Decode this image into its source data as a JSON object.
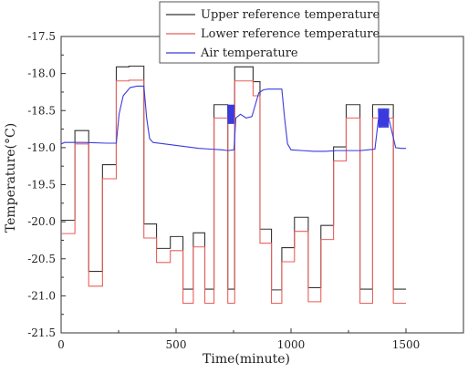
{
  "chart_data": {
    "type": "line",
    "xlabel": "Time(minute)",
    "ylabel": "Temperature(°C)",
    "xlim": [
      0,
      1750
    ],
    "ylim": [
      -21.5,
      -17.5
    ],
    "x_ticks": [
      "0",
      "500",
      "1000",
      "1500"
    ],
    "x_tick_values": [
      0,
      500,
      1000,
      1500
    ],
    "y_ticks": [
      "-17.5",
      "-18.0",
      "-18.5",
      "-19.0",
      "-19.5",
      "-20.0",
      "-20.5",
      "-21.0",
      "-21.5"
    ],
    "y_tick_values": [
      -17.5,
      -18.0,
      -18.5,
      -19.0,
      -19.5,
      -20.0,
      -20.5,
      -21.0,
      -21.5
    ],
    "grid": false,
    "legend_position": "top-center",
    "series": [
      {
        "name": "Upper reference temperature",
        "color": "#333333",
        "x": [
          0,
          60,
          60,
          120,
          120,
          180,
          180,
          240,
          240,
          295,
          295,
          360,
          360,
          415,
          415,
          475,
          475,
          530,
          530,
          575,
          575,
          625,
          625,
          665,
          665,
          725,
          725,
          755,
          755,
          835,
          835,
          865,
          865,
          915,
          915,
          960,
          960,
          1015,
          1015,
          1075,
          1075,
          1130,
          1130,
          1185,
          1185,
          1240,
          1240,
          1300,
          1300,
          1355,
          1355,
          1445,
          1445,
          1500
        ],
        "y": [
          -19.98,
          -19.98,
          -18.77,
          -18.77,
          -20.67,
          -20.67,
          -19.23,
          -19.23,
          -17.91,
          -17.91,
          -17.9,
          -17.9,
          -20.03,
          -20.03,
          -20.36,
          -20.36,
          -20.2,
          -20.2,
          -20.91,
          -20.91,
          -20.15,
          -20.15,
          -20.91,
          -20.91,
          -18.42,
          -18.42,
          -20.91,
          -20.91,
          -17.91,
          -17.91,
          -18.11,
          -18.11,
          -20.1,
          -20.1,
          -20.92,
          -20.92,
          -20.35,
          -20.35,
          -19.94,
          -19.94,
          -20.89,
          -20.89,
          -20.05,
          -20.05,
          -18.99,
          -18.99,
          -18.42,
          -18.42,
          -20.91,
          -20.91,
          -18.42,
          -18.42,
          -20.91,
          -20.91
        ]
      },
      {
        "name": "Lower reference temperature",
        "color": "#e8605a",
        "x": [
          0,
          60,
          60,
          120,
          120,
          180,
          180,
          240,
          240,
          295,
          295,
          360,
          360,
          415,
          415,
          475,
          475,
          530,
          530,
          575,
          575,
          625,
          625,
          665,
          665,
          725,
          725,
          755,
          755,
          835,
          835,
          865,
          865,
          915,
          915,
          960,
          960,
          1015,
          1015,
          1075,
          1075,
          1130,
          1130,
          1185,
          1185,
          1240,
          1240,
          1300,
          1300,
          1355,
          1355,
          1445,
          1445,
          1500
        ],
        "y": [
          -20.16,
          -20.16,
          -18.95,
          -18.95,
          -20.87,
          -20.87,
          -19.42,
          -19.42,
          -18.1,
          -18.1,
          -18.09,
          -18.09,
          -20.22,
          -20.22,
          -20.55,
          -20.55,
          -20.39,
          -20.39,
          -21.1,
          -21.1,
          -20.34,
          -20.34,
          -21.1,
          -21.1,
          -18.6,
          -18.6,
          -21.1,
          -21.1,
          -18.1,
          -18.1,
          -18.3,
          -18.3,
          -20.29,
          -20.29,
          -21.1,
          -21.1,
          -20.54,
          -20.54,
          -20.13,
          -20.13,
          -21.08,
          -21.08,
          -20.24,
          -20.24,
          -19.18,
          -19.18,
          -18.6,
          -18.6,
          -21.1,
          -21.1,
          -18.6,
          -18.6,
          -21.1,
          -21.1
        ]
      },
      {
        "name": "Air temperature",
        "color": "#3a3adf",
        "x": [
          0,
          15,
          40,
          100,
          200,
          240,
          252,
          270,
          300,
          330,
          360,
          372,
          385,
          400,
          450,
          500,
          550,
          600,
          650,
          700,
          725,
          752,
          760,
          780,
          805,
          830,
          860,
          880,
          900,
          930,
          960,
          972,
          985,
          1000,
          1050,
          1100,
          1150,
          1200,
          1250,
          1300,
          1335,
          1365,
          1380,
          1395,
          1425,
          1455,
          1480,
          1500
        ],
        "y": [
          -18.95,
          -18.93,
          -18.93,
          -18.93,
          -18.94,
          -18.94,
          -18.55,
          -18.3,
          -18.19,
          -18.17,
          -18.17,
          -18.6,
          -18.88,
          -18.93,
          -18.95,
          -18.97,
          -18.99,
          -19.01,
          -19.02,
          -19.03,
          -19.04,
          -19.03,
          -18.6,
          -18.55,
          -18.6,
          -18.58,
          -18.26,
          -18.22,
          -18.21,
          -18.21,
          -18.21,
          -18.6,
          -18.95,
          -19.03,
          -19.04,
          -19.05,
          -19.05,
          -19.04,
          -19.04,
          -19.04,
          -19.03,
          -19.02,
          -18.62,
          -18.6,
          -18.6,
          -19.0,
          -19.01,
          -19.01
        ]
      }
    ],
    "oscillations": [
      {
        "x_start": 725,
        "x_end": 752,
        "center": -18.55,
        "amplitude": 0.13,
        "cycles": 9
      },
      {
        "x_start": 1380,
        "x_end": 1425,
        "center": -18.6,
        "amplitude": 0.13,
        "cycles": 10
      }
    ]
  }
}
